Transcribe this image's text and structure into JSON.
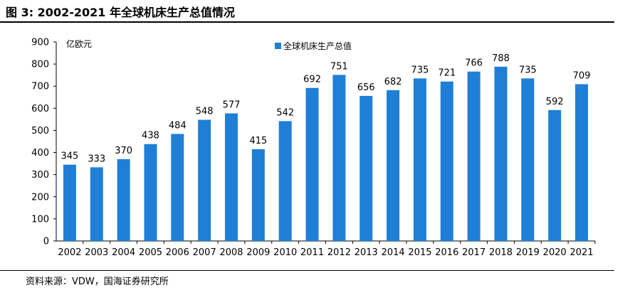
{
  "figure_title": "图 3:  2002-2021 年全球机床生产总值情况",
  "source_note": "资料来源：VDW，国海证券研究所",
  "chart_data": {
    "type": "bar",
    "title": "",
    "ylabel": "亿欧元",
    "xlabel": "",
    "categories": [
      "2002",
      "2003",
      "2004",
      "2005",
      "2006",
      "2007",
      "2008",
      "2009",
      "2010",
      "2011",
      "2012",
      "2013",
      "2014",
      "2015",
      "2016",
      "2017",
      "2018",
      "2019",
      "2020",
      "2021"
    ],
    "series": [
      {
        "name": "全球机床生产总值",
        "values": [
          345,
          333,
          370,
          438,
          484,
          548,
          577,
          415,
          542,
          692,
          751,
          656,
          682,
          735,
          721,
          766,
          788,
          735,
          592,
          709
        ]
      }
    ],
    "ylim": [
      0,
      900
    ],
    "yticks": [
      0,
      100,
      200,
      300,
      400,
      500,
      600,
      700,
      800,
      900
    ],
    "grid": false,
    "legend_position": "top",
    "data_labels": true,
    "bar_color": "#1f7fd6"
  }
}
